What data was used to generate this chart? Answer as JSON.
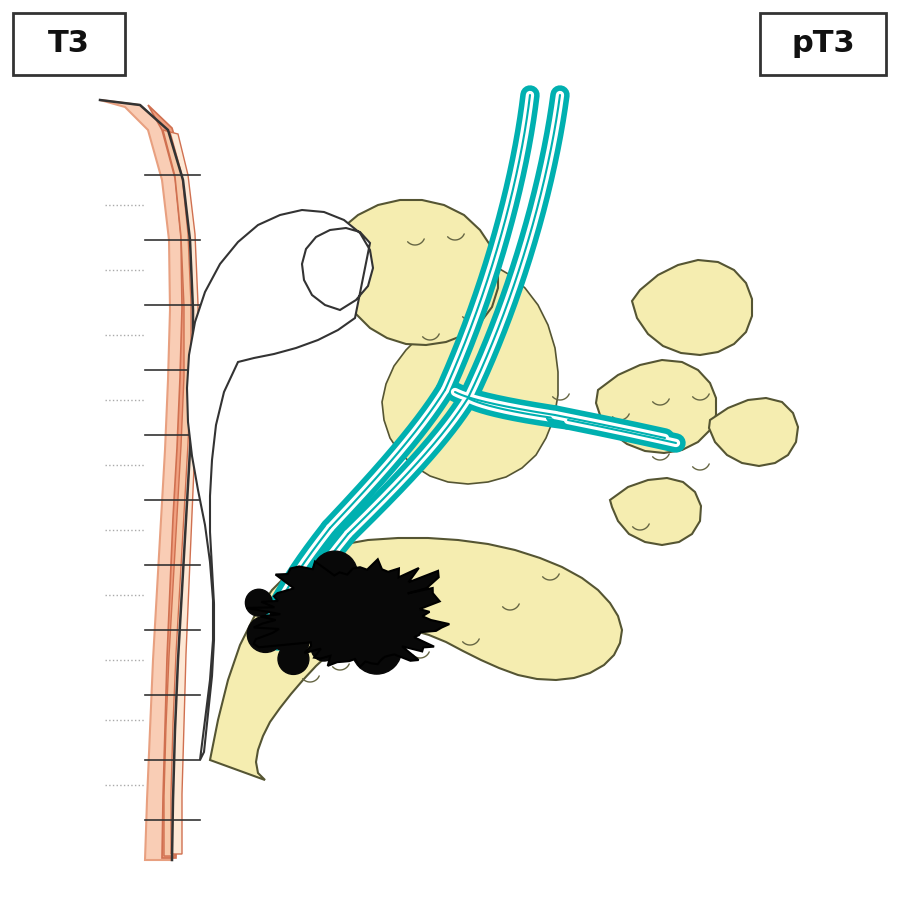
{
  "title_left": "T3",
  "title_right": "pT3",
  "bg_color": "#ffffff",
  "title_fontsize": 22
}
